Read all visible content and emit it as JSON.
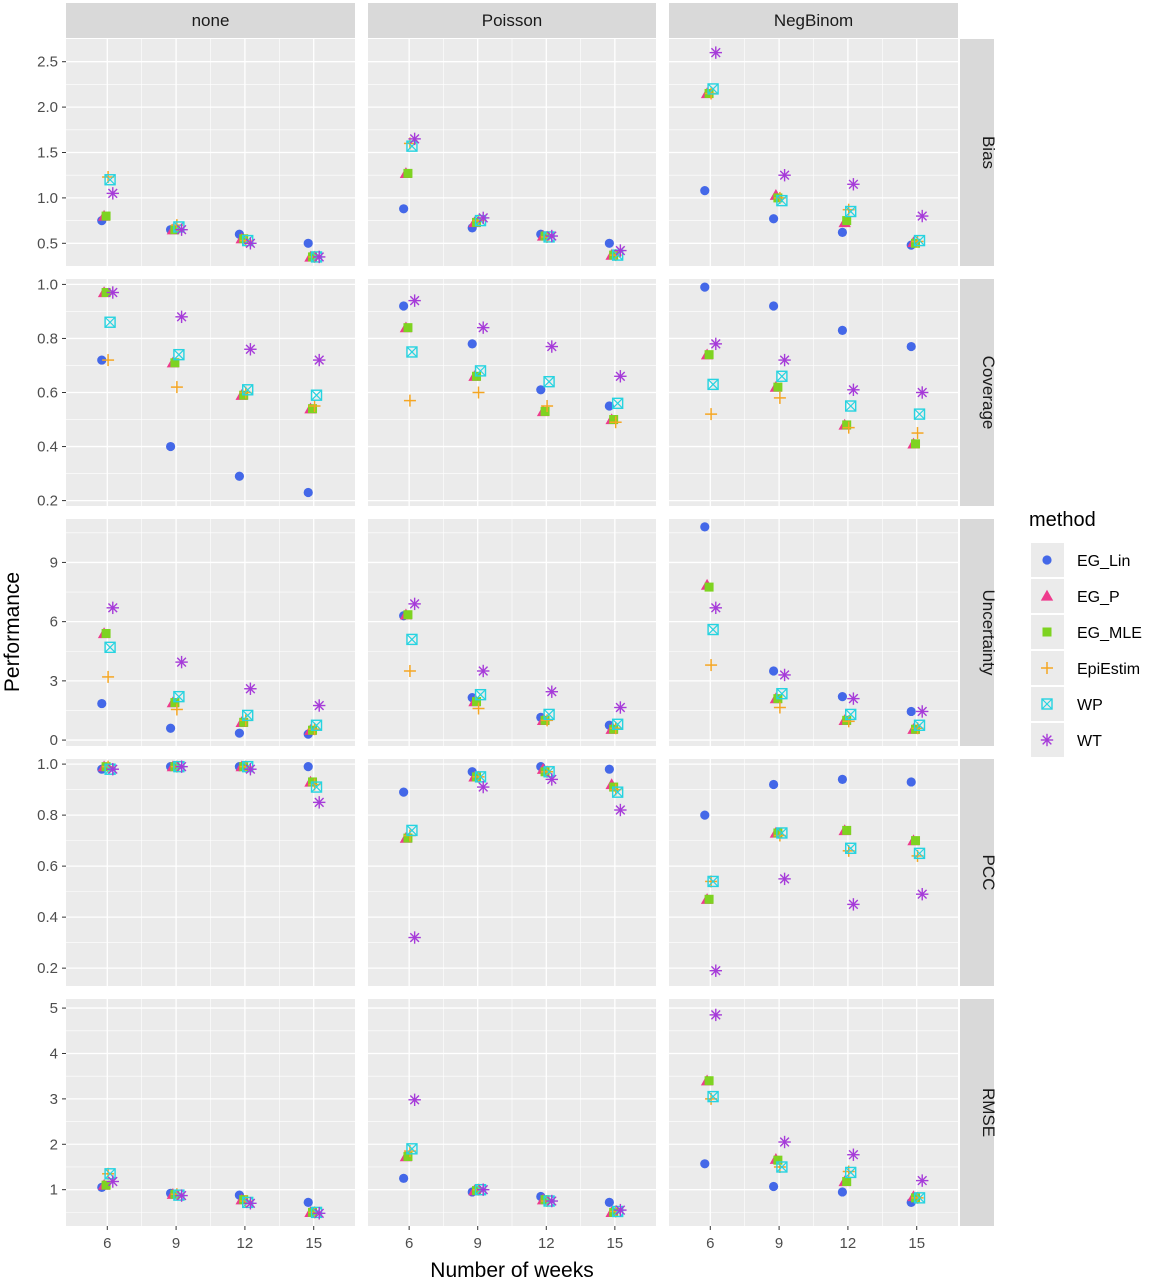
{
  "chart_data": {
    "type": "scatter",
    "xlabel": "Number of weeks",
    "ylabel": "Performance",
    "x_values": [
      6,
      9,
      12,
      15
    ],
    "noise_models": [
      "none",
      "Poisson",
      "NegBinom"
    ],
    "metrics": [
      "Bias",
      "Coverage",
      "Uncertainty",
      "PCC",
      "RMSE"
    ],
    "y_ranges": {
      "Bias": [
        0.25,
        2.75
      ],
      "Coverage": [
        0.18,
        1.02
      ],
      "Uncertainty": [
        -0.3,
        11.2
      ],
      "PCC": [
        0.13,
        1.02
      ],
      "RMSE": [
        0.2,
        5.2
      ]
    },
    "y_ticks": {
      "Bias": [
        0.5,
        1.0,
        1.5,
        2.0,
        2.5
      ],
      "Coverage": [
        0.2,
        0.4,
        0.6,
        0.8,
        1.0
      ],
      "Uncertainty": [
        0,
        3,
        6,
        9
      ],
      "PCC": [
        0.2,
        0.4,
        0.6,
        0.8,
        1.0
      ],
      "RMSE": [
        1,
        2,
        3,
        4,
        5
      ]
    },
    "y_tick_labels": {
      "Bias": [
        "0.5",
        "1.0",
        "1.5",
        "2.0",
        "2.5"
      ],
      "Coverage": [
        "0.2",
        "0.4",
        "0.6",
        "0.8",
        "1.0"
      ],
      "Uncertainty": [
        "0",
        "3",
        "6",
        "9"
      ],
      "PCC": [
        "0.2",
        "0.4",
        "0.6",
        "0.8",
        "1.0"
      ],
      "RMSE": [
        "1",
        "2",
        "3",
        "4",
        "5"
      ]
    },
    "legend": {
      "title": "method",
      "placement": "right",
      "items": [
        {
          "name": "EG_Lin",
          "color": "#4468e8",
          "shape": "circle"
        },
        {
          "name": "EG_P",
          "color": "#ee3b8d",
          "shape": "triangle"
        },
        {
          "name": "EG_MLE",
          "color": "#7ed321",
          "shape": "square"
        },
        {
          "name": "EpiEstim",
          "color": "#f5a623",
          "shape": "plus"
        },
        {
          "name": "WP",
          "color": "#27d3e0",
          "shape": "boxed-x"
        },
        {
          "name": "WT",
          "color": "#a63bd9",
          "shape": "asterisk"
        }
      ]
    },
    "grid": true,
    "values": {
      "Bias": {
        "none": {
          "EG_Lin": [
            0.75,
            0.65,
            0.6,
            0.5
          ],
          "EG_P": [
            0.8,
            0.65,
            0.55,
            0.35
          ],
          "EG_MLE": [
            0.8,
            0.65,
            0.55,
            0.35
          ],
          "EpiEstim": [
            1.23,
            0.7,
            0.53,
            0.35
          ],
          "WP": [
            1.2,
            0.68,
            0.53,
            0.35
          ],
          "WT": [
            1.05,
            0.65,
            0.5,
            0.35
          ]
        },
        "Poisson": {
          "EG_Lin": [
            0.88,
            0.67,
            0.6,
            0.5
          ],
          "EG_P": [
            1.27,
            0.73,
            0.58,
            0.37
          ],
          "EG_MLE": [
            1.27,
            0.73,
            0.58,
            0.37
          ],
          "EpiEstim": [
            1.6,
            0.75,
            0.57,
            0.37
          ],
          "WP": [
            1.57,
            0.75,
            0.57,
            0.37
          ],
          "WT": [
            1.65,
            0.78,
            0.58,
            0.42
          ]
        },
        "NegBinom": {
          "EG_Lin": [
            1.08,
            0.77,
            0.62,
            0.48
          ],
          "EG_P": [
            2.15,
            1.03,
            0.73,
            0.51
          ],
          "EG_MLE": [
            2.15,
            1.0,
            0.75,
            0.5
          ],
          "EpiEstim": [
            2.15,
            1.0,
            0.87,
            0.52
          ],
          "WP": [
            2.2,
            0.97,
            0.85,
            0.53
          ],
          "WT": [
            2.6,
            1.25,
            1.15,
            0.8
          ]
        }
      },
      "Coverage": {
        "none": {
          "EG_Lin": [
            0.72,
            0.4,
            0.29,
            0.23
          ],
          "EG_P": [
            0.97,
            0.71,
            0.59,
            0.54
          ],
          "EG_MLE": [
            0.97,
            0.71,
            0.59,
            0.54
          ],
          "EpiEstim": [
            0.72,
            0.62,
            0.6,
            0.55
          ],
          "WP": [
            0.86,
            0.74,
            0.61,
            0.59
          ],
          "WT": [
            0.97,
            0.88,
            0.76,
            0.72
          ]
        },
        "Poisson": {
          "EG_Lin": [
            0.92,
            0.78,
            0.61,
            0.55
          ],
          "EG_P": [
            0.84,
            0.66,
            0.53,
            0.5
          ],
          "EG_MLE": [
            0.84,
            0.66,
            0.53,
            0.5
          ],
          "EpiEstim": [
            0.57,
            0.6,
            0.55,
            0.49
          ],
          "WP": [
            0.75,
            0.68,
            0.64,
            0.56
          ],
          "WT": [
            0.94,
            0.84,
            0.77,
            0.66
          ]
        },
        "NegBinom": {
          "EG_Lin": [
            0.99,
            0.92,
            0.83,
            0.77
          ],
          "EG_P": [
            0.74,
            0.62,
            0.48,
            0.41
          ],
          "EG_MLE": [
            0.74,
            0.62,
            0.48,
            0.41
          ],
          "EpiEstim": [
            0.52,
            0.58,
            0.47,
            0.45
          ],
          "WP": [
            0.63,
            0.66,
            0.55,
            0.52
          ],
          "WT": [
            0.78,
            0.72,
            0.61,
            0.6
          ]
        }
      },
      "Uncertainty": {
        "none": {
          "EG_Lin": [
            1.85,
            0.6,
            0.35,
            0.3
          ],
          "EG_P": [
            5.4,
            1.9,
            0.9,
            0.5
          ],
          "EG_MLE": [
            5.4,
            1.9,
            0.9,
            0.5
          ],
          "EpiEstim": [
            3.2,
            1.55,
            1.0,
            0.55
          ],
          "WP": [
            4.7,
            2.2,
            1.25,
            0.75
          ],
          "WT": [
            6.7,
            3.95,
            2.6,
            1.75
          ]
        },
        "Poisson": {
          "EG_Lin": [
            6.3,
            2.15,
            1.15,
            0.75
          ],
          "EG_P": [
            6.35,
            1.95,
            1.0,
            0.55
          ],
          "EG_MLE": [
            6.35,
            1.95,
            1.0,
            0.55
          ],
          "EpiEstim": [
            3.5,
            1.6,
            1.0,
            0.6
          ],
          "WP": [
            5.1,
            2.3,
            1.3,
            0.8
          ],
          "WT": [
            6.9,
            3.5,
            2.45,
            1.65
          ]
        },
        "NegBinom": {
          "EG_Lin": [
            10.8,
            3.5,
            2.2,
            1.45
          ],
          "EG_P": [
            7.85,
            2.1,
            1.0,
            0.55
          ],
          "EG_MLE": [
            7.75,
            2.1,
            1.0,
            0.55
          ],
          "EpiEstim": [
            3.8,
            1.65,
            0.95,
            0.6
          ],
          "WP": [
            5.6,
            2.35,
            1.3,
            0.75
          ],
          "WT": [
            6.7,
            3.3,
            2.1,
            1.45
          ]
        }
      },
      "PCC": {
        "none": {
          "EG_Lin": [
            0.98,
            0.99,
            0.99,
            0.99
          ],
          "EG_P": [
            0.99,
            0.99,
            0.99,
            0.93
          ],
          "EG_MLE": [
            0.99,
            0.99,
            0.99,
            0.93
          ],
          "EpiEstim": [
            0.99,
            0.99,
            0.99,
            0.92
          ],
          "WP": [
            0.98,
            0.99,
            0.99,
            0.91
          ],
          "WT": [
            0.98,
            0.99,
            0.98,
            0.85
          ]
        },
        "Poisson": {
          "EG_Lin": [
            0.89,
            0.97,
            0.99,
            0.98
          ],
          "EG_P": [
            0.71,
            0.95,
            0.98,
            0.92
          ],
          "EG_MLE": [
            0.71,
            0.95,
            0.97,
            0.91
          ],
          "EpiEstim": [
            0.72,
            0.95,
            0.97,
            0.9
          ],
          "WP": [
            0.74,
            0.95,
            0.97,
            0.89
          ],
          "WT": [
            0.32,
            0.91,
            0.94,
            0.82
          ]
        },
        "NegBinom": {
          "EG_Lin": [
            0.8,
            0.92,
            0.94,
            0.93
          ],
          "EG_P": [
            0.47,
            0.73,
            0.74,
            0.7
          ],
          "EG_MLE": [
            0.47,
            0.73,
            0.74,
            0.7
          ],
          "EpiEstim": [
            0.54,
            0.72,
            0.66,
            0.64
          ],
          "WP": [
            0.54,
            0.73,
            0.67,
            0.65
          ],
          "WT": [
            0.19,
            0.55,
            0.45,
            0.49
          ]
        }
      },
      "RMSE": {
        "none": {
          "EG_Lin": [
            1.05,
            0.92,
            0.88,
            0.72
          ],
          "EG_P": [
            1.1,
            0.9,
            0.78,
            0.5
          ],
          "EG_MLE": [
            1.1,
            0.9,
            0.78,
            0.5
          ],
          "EpiEstim": [
            1.35,
            0.9,
            0.75,
            0.5
          ],
          "WP": [
            1.35,
            0.88,
            0.72,
            0.5
          ],
          "WT": [
            1.18,
            0.87,
            0.7,
            0.48
          ]
        },
        "Poisson": {
          "EG_Lin": [
            1.25,
            0.95,
            0.85,
            0.72
          ],
          "EG_P": [
            1.73,
            0.98,
            0.78,
            0.5
          ],
          "EG_MLE": [
            1.73,
            0.98,
            0.78,
            0.5
          ],
          "EpiEstim": [
            1.85,
            1.0,
            0.75,
            0.52
          ],
          "WP": [
            1.9,
            1.0,
            0.75,
            0.52
          ],
          "WT": [
            2.98,
            1.0,
            0.75,
            0.55
          ]
        },
        "NegBinom": {
          "EG_Lin": [
            1.57,
            1.07,
            0.95,
            0.72
          ],
          "EG_P": [
            3.4,
            1.67,
            1.18,
            0.85
          ],
          "EG_MLE": [
            3.4,
            1.65,
            1.18,
            0.82
          ],
          "EpiEstim": [
            3.0,
            1.5,
            1.4,
            0.82
          ],
          "WP": [
            3.05,
            1.5,
            1.38,
            0.82
          ],
          "WT": [
            4.85,
            2.05,
            1.77,
            1.2
          ]
        }
      }
    }
  }
}
